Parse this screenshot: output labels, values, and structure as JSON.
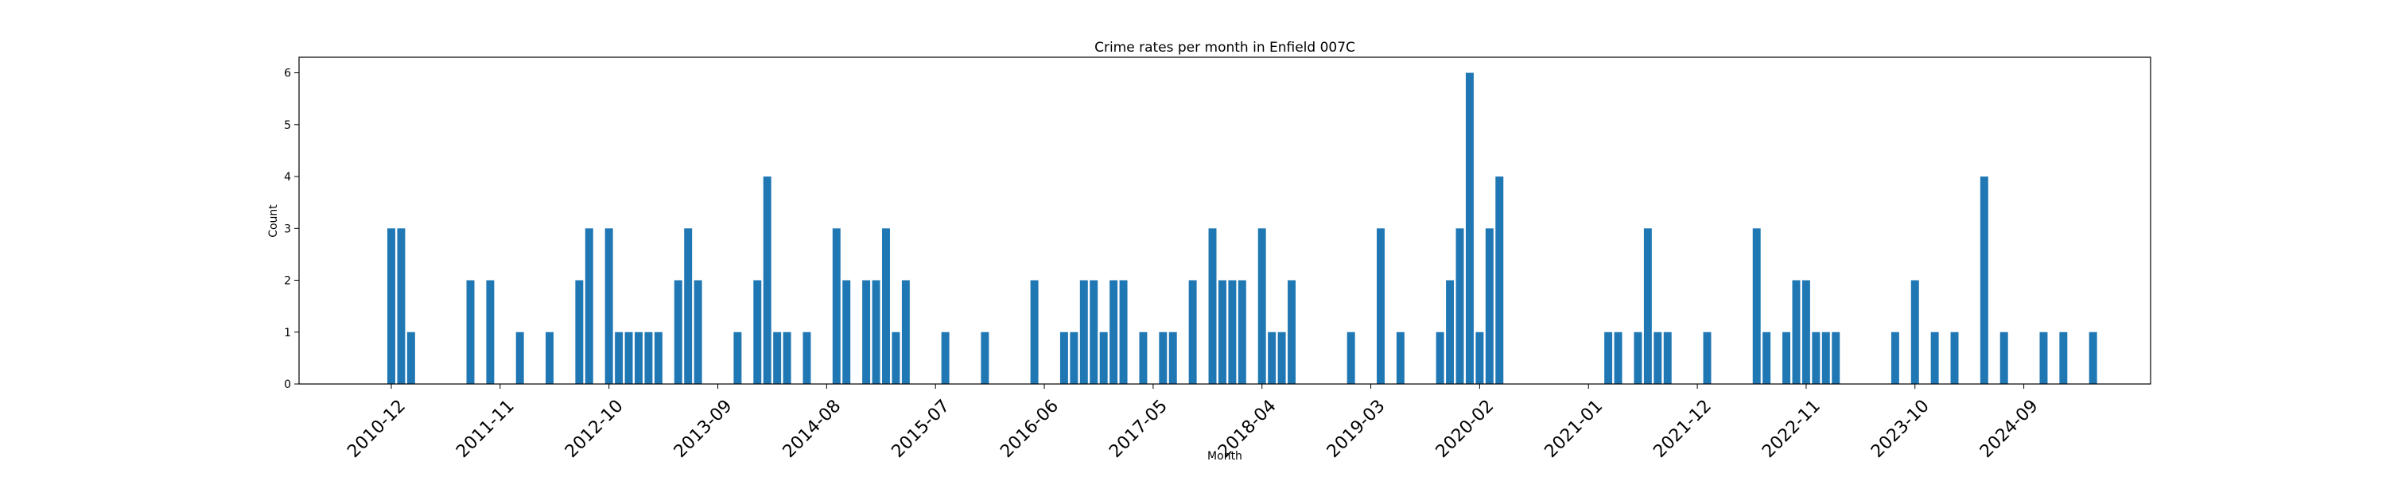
{
  "chart_data": {
    "type": "bar",
    "title": "Crime rates per month in Enfield 007C",
    "xlabel": "Month",
    "ylabel": "Count",
    "ylim": [
      0,
      6.3
    ],
    "yticks": [
      0,
      1,
      2,
      3,
      4,
      5,
      6
    ],
    "x_tick_labels": [
      "2010-12",
      "2011-11",
      "2012-10",
      "2013-09",
      "2014-08",
      "2015-07",
      "2016-06",
      "2017-05",
      "2018-04",
      "2019-03",
      "2020-02",
      "2021-01",
      "2021-12",
      "2022-11",
      "2023-10",
      "2024-09"
    ],
    "grid": false,
    "bar_color": "#1f77b4",
    "categories": [
      "2010-12",
      "2011-01",
      "2011-02",
      "2011-08",
      "2011-10",
      "2012-01",
      "2012-04",
      "2012-07",
      "2012-08",
      "2012-10",
      "2012-11",
      "2012-12",
      "2013-01",
      "2013-02",
      "2013-03",
      "2013-05",
      "2013-06",
      "2013-07",
      "2013-11",
      "2014-01",
      "2014-02",
      "2014-03",
      "2014-04",
      "2014-06",
      "2014-09",
      "2014-10",
      "2014-12",
      "2015-01",
      "2015-02",
      "2015-03",
      "2015-04",
      "2015-08",
      "2015-12",
      "2016-05",
      "2016-08",
      "2016-09",
      "2016-10",
      "2016-11",
      "2016-12",
      "2017-01",
      "2017-02",
      "2017-04",
      "2017-06",
      "2017-07",
      "2017-09",
      "2017-11",
      "2017-12",
      "2018-01",
      "2018-02",
      "2018-04",
      "2018-05",
      "2018-06",
      "2018-07",
      "2019-01",
      "2019-04",
      "2019-06",
      "2019-10",
      "2019-11",
      "2019-12",
      "2020-01",
      "2020-02",
      "2020-03",
      "2020-04",
      "2021-03",
      "2021-04",
      "2021-06",
      "2021-07",
      "2021-08",
      "2021-09",
      "2022-01",
      "2022-06",
      "2022-07",
      "2022-09",
      "2022-10",
      "2022-11",
      "2022-12",
      "2023-01",
      "2023-02",
      "2023-08",
      "2023-10",
      "2023-12",
      "2024-02",
      "2024-05",
      "2024-07",
      "2024-11",
      "2025-01",
      "2025-04"
    ],
    "values": [
      3,
      3,
      1,
      2,
      2,
      1,
      1,
      2,
      3,
      3,
      1,
      1,
      1,
      1,
      1,
      2,
      3,
      2,
      1,
      2,
      4,
      1,
      1,
      1,
      3,
      2,
      2,
      2,
      3,
      1,
      2,
      1,
      1,
      2,
      1,
      1,
      2,
      2,
      1,
      2,
      2,
      1,
      1,
      1,
      2,
      3,
      2,
      2,
      2,
      3,
      1,
      1,
      2,
      1,
      3,
      1,
      1,
      2,
      3,
      6,
      1,
      3,
      4,
      1,
      1,
      1,
      3,
      1,
      1,
      1,
      3,
      1,
      1,
      2,
      2,
      1,
      1,
      1,
      1,
      2,
      1,
      1,
      4,
      1,
      1,
      1,
      1
    ]
  }
}
